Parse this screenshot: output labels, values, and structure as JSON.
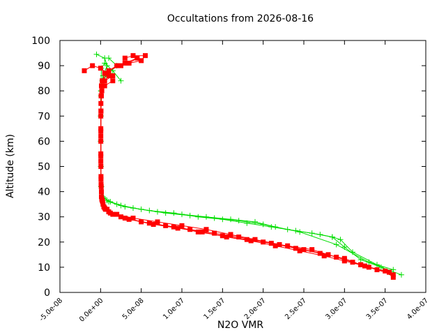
{
  "chart_data": {
    "type": "scatter",
    "title": "Occultations from 2026-08-16",
    "xlabel": "N2O VMR",
    "ylabel": "Altitude (km)",
    "xlim": [
      -5e-08,
      4e-07
    ],
    "ylim": [
      0,
      100
    ],
    "grid": false,
    "legend": "none",
    "x_ticks": [
      {
        "value": -5e-08,
        "label": "-5.0e-08"
      },
      {
        "value": 0,
        "label": "0.0e+00"
      },
      {
        "value": 5e-08,
        "label": "5.0e-08"
      },
      {
        "value": 1e-07,
        "label": "1.0e-07"
      },
      {
        "value": 1.5e-07,
        "label": "1.5e-07"
      },
      {
        "value": 2e-07,
        "label": "2.0e-07"
      },
      {
        "value": 2.5e-07,
        "label": "2.5e-07"
      },
      {
        "value": 3e-07,
        "label": "3.0e-07"
      },
      {
        "value": 3.5e-07,
        "label": "3.5e-07"
      },
      {
        "value": 4e-07,
        "label": "4.0e-07"
      }
    ],
    "y_ticks": [
      {
        "value": 0,
        "label": "0"
      },
      {
        "value": 10,
        "label": "10"
      },
      {
        "value": 20,
        "label": "20"
      },
      {
        "value": 30,
        "label": "30"
      },
      {
        "value": 40,
        "label": "40"
      },
      {
        "value": 50,
        "label": "50"
      },
      {
        "value": 60,
        "label": "60"
      },
      {
        "value": 70,
        "label": "70"
      },
      {
        "value": 80,
        "label": "80"
      },
      {
        "value": 90,
        "label": "90"
      },
      {
        "value": 100,
        "label": "100"
      }
    ],
    "series": [
      {
        "color": "#00dd00",
        "marker": "plus",
        "profiles": [
          {
            "x": [
              2.5e-08,
              1.5e-08,
              5e-09,
              1e-09,
              3e-10,
              2e-10,
              2e-10,
              3e-10,
              5e-10,
              2e-09,
              8e-09,
              2e-08,
              4e-08,
              7e-08,
              1e-07,
              1.3e-07,
              1.6e-07,
              1.9e-07,
              2.15e-07,
              2.45e-07,
              2.9e-07,
              3.3e-07,
              3.6e-07
            ],
            "y": [
              84,
              88,
              91,
              89,
              80,
              70,
              60,
              50,
              42,
              38,
              36.5,
              35,
              33.5,
              32,
              31,
              30,
              29,
              28,
              26,
              24,
              19,
              12,
              9
            ]
          },
          {
            "x": [
              -5e-09,
              5e-09,
              8e-09,
              3e-09,
              6e-10,
              3e-10,
              3e-10,
              4e-10,
              8e-10,
              3e-09,
              1e-08,
              2.5e-08,
              5e-08,
              8e-08,
              1.1e-07,
              1.4e-07,
              1.7e-07,
              2e-07,
              2.3e-07,
              2.6e-07,
              2.85e-07,
              2.95e-07,
              3.1e-07,
              3.4e-07,
              3.55e-07
            ],
            "y": [
              94.5,
              93,
              90,
              86,
              80,
              70,
              60,
              50,
              42,
              38,
              36,
              34.5,
              33,
              31.5,
              30.5,
              29.5,
              28.5,
              27,
              25,
              23.5,
              22,
              21,
              16,
              11,
              8
            ]
          },
          {
            "x": [
              1e-08,
              2e-08,
              1e-08,
              2e-09,
              4e-10,
              2e-10,
              3e-10,
              4e-10,
              1e-09,
              4e-09,
              1.2e-08,
              3e-08,
              6e-08,
              9e-08,
              1.2e-07,
              1.5e-07,
              1.8e-07,
              2.1e-07,
              2.4e-07,
              2.7e-07,
              2.85e-07,
              3e-07,
              3.2e-07,
              3.45e-07,
              3.7e-07
            ],
            "y": [
              93,
              90,
              87,
              84,
              78,
              70,
              60,
              50,
              42,
              37.5,
              36,
              34,
              32.5,
              31.5,
              30,
              29,
              27.5,
              26,
              24.5,
              23,
              22,
              18,
              13,
              10,
              7
            ]
          }
        ]
      },
      {
        "color": "#ff0000",
        "marker": "square",
        "profiles": [
          {
            "x": [
              3e-08,
              4e-08,
              5.5e-08,
              5e-08,
              2e-08,
              5e-09,
              1e-09,
              4e-10,
              3e-10,
              3e-10,
              5e-10,
              1e-09,
              3e-09,
              8e-09,
              2e-08,
              4e-08,
              7e-08,
              1e-07,
              1.3e-07,
              1.6e-07,
              1.9e-07,
              2.2e-07,
              2.5e-07,
              2.8e-07,
              3e-07,
              3.2e-07,
              3.4e-07
            ],
            "y": [
              93,
              94,
              94,
              92,
              90,
              87,
              82,
              75,
              65,
              55,
              45,
              38,
              35,
              33,
              31,
              29.5,
              28,
              26.5,
              25,
              23,
              21,
              19,
              17,
              15,
              13,
              11,
              9
            ]
          },
          {
            "x": [
              -2e-08,
              -1e-08,
              0,
              8e-09,
              1.5e-08,
              5e-09,
              1.5e-09,
              5e-10,
              3e-10,
              3e-10,
              6e-10,
              1.5e-09,
              4e-09,
              1e-08,
              2.5e-08,
              5e-08,
              8e-08,
              1.1e-07,
              1.4e-07,
              1.7e-07,
              2e-07,
              2.3e-07,
              2.6e-07,
              2.9e-07,
              3.1e-07,
              3.3e-07,
              3.55e-07
            ],
            "y": [
              88,
              90,
              89,
              87,
              86,
              84,
              80,
              72,
              62,
              52,
              43,
              37,
              34,
              32,
              30,
              28,
              26.5,
              25,
              23.5,
              22,
              20,
              18.5,
              17,
              14,
              12,
              10,
              8
            ]
          },
          {
            "x": [
              2.5e-08,
              3.5e-08,
              4.5e-08,
              3e-08,
              1e-08,
              2e-09,
              6e-10,
              3e-10,
              3e-10,
              4e-10,
              8e-10,
              2e-09,
              5e-09,
              1.2e-08,
              3e-08,
              6e-08,
              9e-08,
              1.2e-07,
              1.5e-07,
              1.8e-07,
              2.1e-07,
              2.4e-07,
              2.7e-07,
              3e-07,
              3.2e-07,
              3.4e-07,
              3.6e-07
            ],
            "y": [
              90,
              91,
              93,
              91,
              88,
              84,
              78,
              70,
              60,
              50,
              42,
              36.5,
              33.5,
              31.5,
              29.5,
              27.5,
              26,
              24,
              22.5,
              21,
              19.5,
              17.5,
              15.5,
              13.5,
              11,
              9,
              7
            ]
          },
          {
            "x": [
              1e-08,
              1.5e-08,
              5e-09,
              1e-09,
              4e-10,
              3e-10,
              3e-10,
              5e-10,
              1e-09,
              2.5e-09,
              6e-09,
              1.5e-08,
              3.5e-08,
              6.5e-08,
              9.5e-08,
              1.25e-07,
              1.55e-07,
              1.85e-07,
              2.15e-07,
              2.45e-07,
              2.75e-07,
              3e-07,
              3.25e-07,
              3.5e-07,
              3.6e-07
            ],
            "y": [
              86,
              84,
              82,
              78,
              72,
              64,
              54,
              46,
              40,
              36,
              33,
              31,
              29,
              27,
              25.5,
              24,
              22,
              20.5,
              18.5,
              16.5,
              14.5,
              12.5,
              10.5,
              8.5,
              6
            ]
          }
        ]
      }
    ]
  }
}
